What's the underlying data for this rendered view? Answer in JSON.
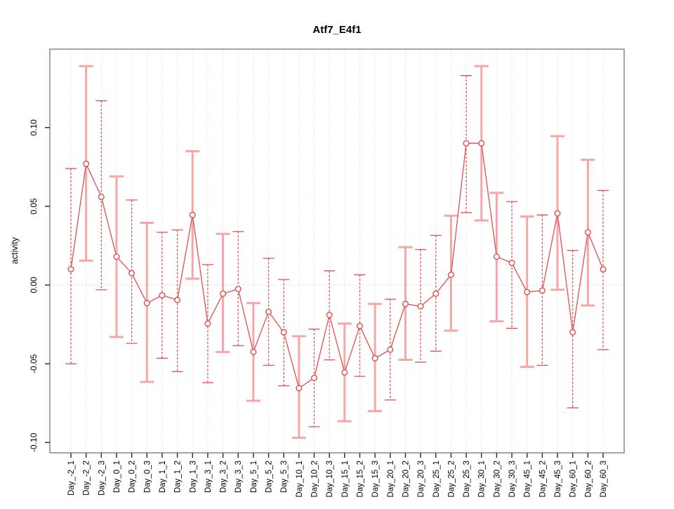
{
  "chart_data": {
    "type": "line",
    "title": "Atf7_E4f1",
    "xlabel": "",
    "ylabel": "activity",
    "legend": "none",
    "grid": "vertical dotted gridline per category; dotted horizontal line at y=0",
    "ylim": [
      -0.105,
      0.145
    ],
    "y_ticks": [
      0.1,
      0.05,
      0.0,
      -0.05,
      -0.1
    ],
    "y_tick_labels": [
      "0.10",
      "0.05",
      "0.00",
      "-0.05",
      "-0.10"
    ],
    "categories": [
      "Day_-2_1",
      "Day_-2_2",
      "Day_-2_3",
      "Day_0_1",
      "Day_0_2",
      "Day_0_3",
      "Day_1_1",
      "Day_1_2",
      "Day_1_3",
      "Day_3_1",
      "Day_3_2",
      "Day_3_3",
      "Day_5_1",
      "Day_5_2",
      "Day_5_3",
      "Day_10_1",
      "Day_10_2",
      "Day_10_3",
      "Day_15_1",
      "Day_15_2",
      "Day_15_3",
      "Day_20_1",
      "Day_20_2",
      "Day_20_3",
      "Day_25_1",
      "Day_25_2",
      "Day_25_3",
      "Day_30_1",
      "Day_30_2",
      "Day_30_3",
      "Day_45_1",
      "Day_45_2",
      "Day_45_3",
      "Day_60_1",
      "Day_60_2",
      "Day_60_3"
    ],
    "series": [
      {
        "name": "activity",
        "marker": "open-circle",
        "values": [
          0.01,
          0.077,
          0.056,
          0.018,
          0.0075,
          -0.0115,
          -0.0065,
          -0.0095,
          0.0445,
          -0.0245,
          -0.0055,
          -0.0025,
          -0.0425,
          -0.017,
          -0.03,
          -0.0655,
          -0.059,
          -0.019,
          -0.0555,
          -0.026,
          -0.0465,
          -0.041,
          -0.012,
          -0.0135,
          -0.0055,
          0.0065,
          0.09,
          0.09,
          0.018,
          0.014,
          -0.0045,
          -0.0035,
          0.0455,
          -0.03,
          0.0335,
          0.01
        ],
        "err_high": [
          0.074,
          0.139,
          0.117,
          0.069,
          0.054,
          0.0395,
          0.0335,
          0.035,
          0.085,
          0.013,
          0.0325,
          0.034,
          -0.0115,
          0.017,
          0.0035,
          -0.0325,
          -0.028,
          0.009,
          -0.0245,
          0.0065,
          -0.012,
          -0.009,
          0.024,
          0.0225,
          0.0315,
          0.044,
          0.133,
          0.139,
          0.0585,
          0.053,
          0.0435,
          0.0445,
          0.0945,
          0.022,
          0.0795,
          0.06
        ],
        "err_low": [
          -0.05,
          0.0155,
          -0.003,
          -0.033,
          -0.037,
          -0.0615,
          -0.0465,
          -0.055,
          0.004,
          -0.062,
          -0.0425,
          -0.0385,
          -0.0735,
          -0.051,
          -0.064,
          -0.097,
          -0.09,
          -0.0475,
          -0.0865,
          -0.058,
          -0.08,
          -0.073,
          -0.0475,
          -0.049,
          -0.042,
          -0.029,
          0.046,
          0.041,
          -0.023,
          -0.0275,
          -0.052,
          -0.051,
          -0.003,
          -0.078,
          -0.013,
          -0.041
        ],
        "bar_style": [
          "dashed",
          "solid",
          "dashed",
          "solid",
          "dashed",
          "solid",
          "dashed",
          "dashed",
          "solid",
          "dashed",
          "solid",
          "dashed",
          "solid",
          "dashed",
          "dashed",
          "solid",
          "dashed",
          "dashed",
          "solid",
          "dashed",
          "solid",
          "dashed",
          "solid",
          "dashed",
          "dashed",
          "solid",
          "dashed",
          "solid",
          "solid",
          "dashed",
          "solid",
          "dashed",
          "solid",
          "dashed",
          "solid",
          "dashed"
        ]
      }
    ],
    "colors": {
      "line": "#e25a5a",
      "point_stroke": "#dd4f4f",
      "point_fill": "#ffffff",
      "errorbar_solid": "#f7a6a6",
      "errorbar_dashed": "#e05252",
      "gridline": "#dcdcdc",
      "zero_line": "#d0d0d0",
      "frame": "#888888",
      "tick": "#333333"
    }
  }
}
